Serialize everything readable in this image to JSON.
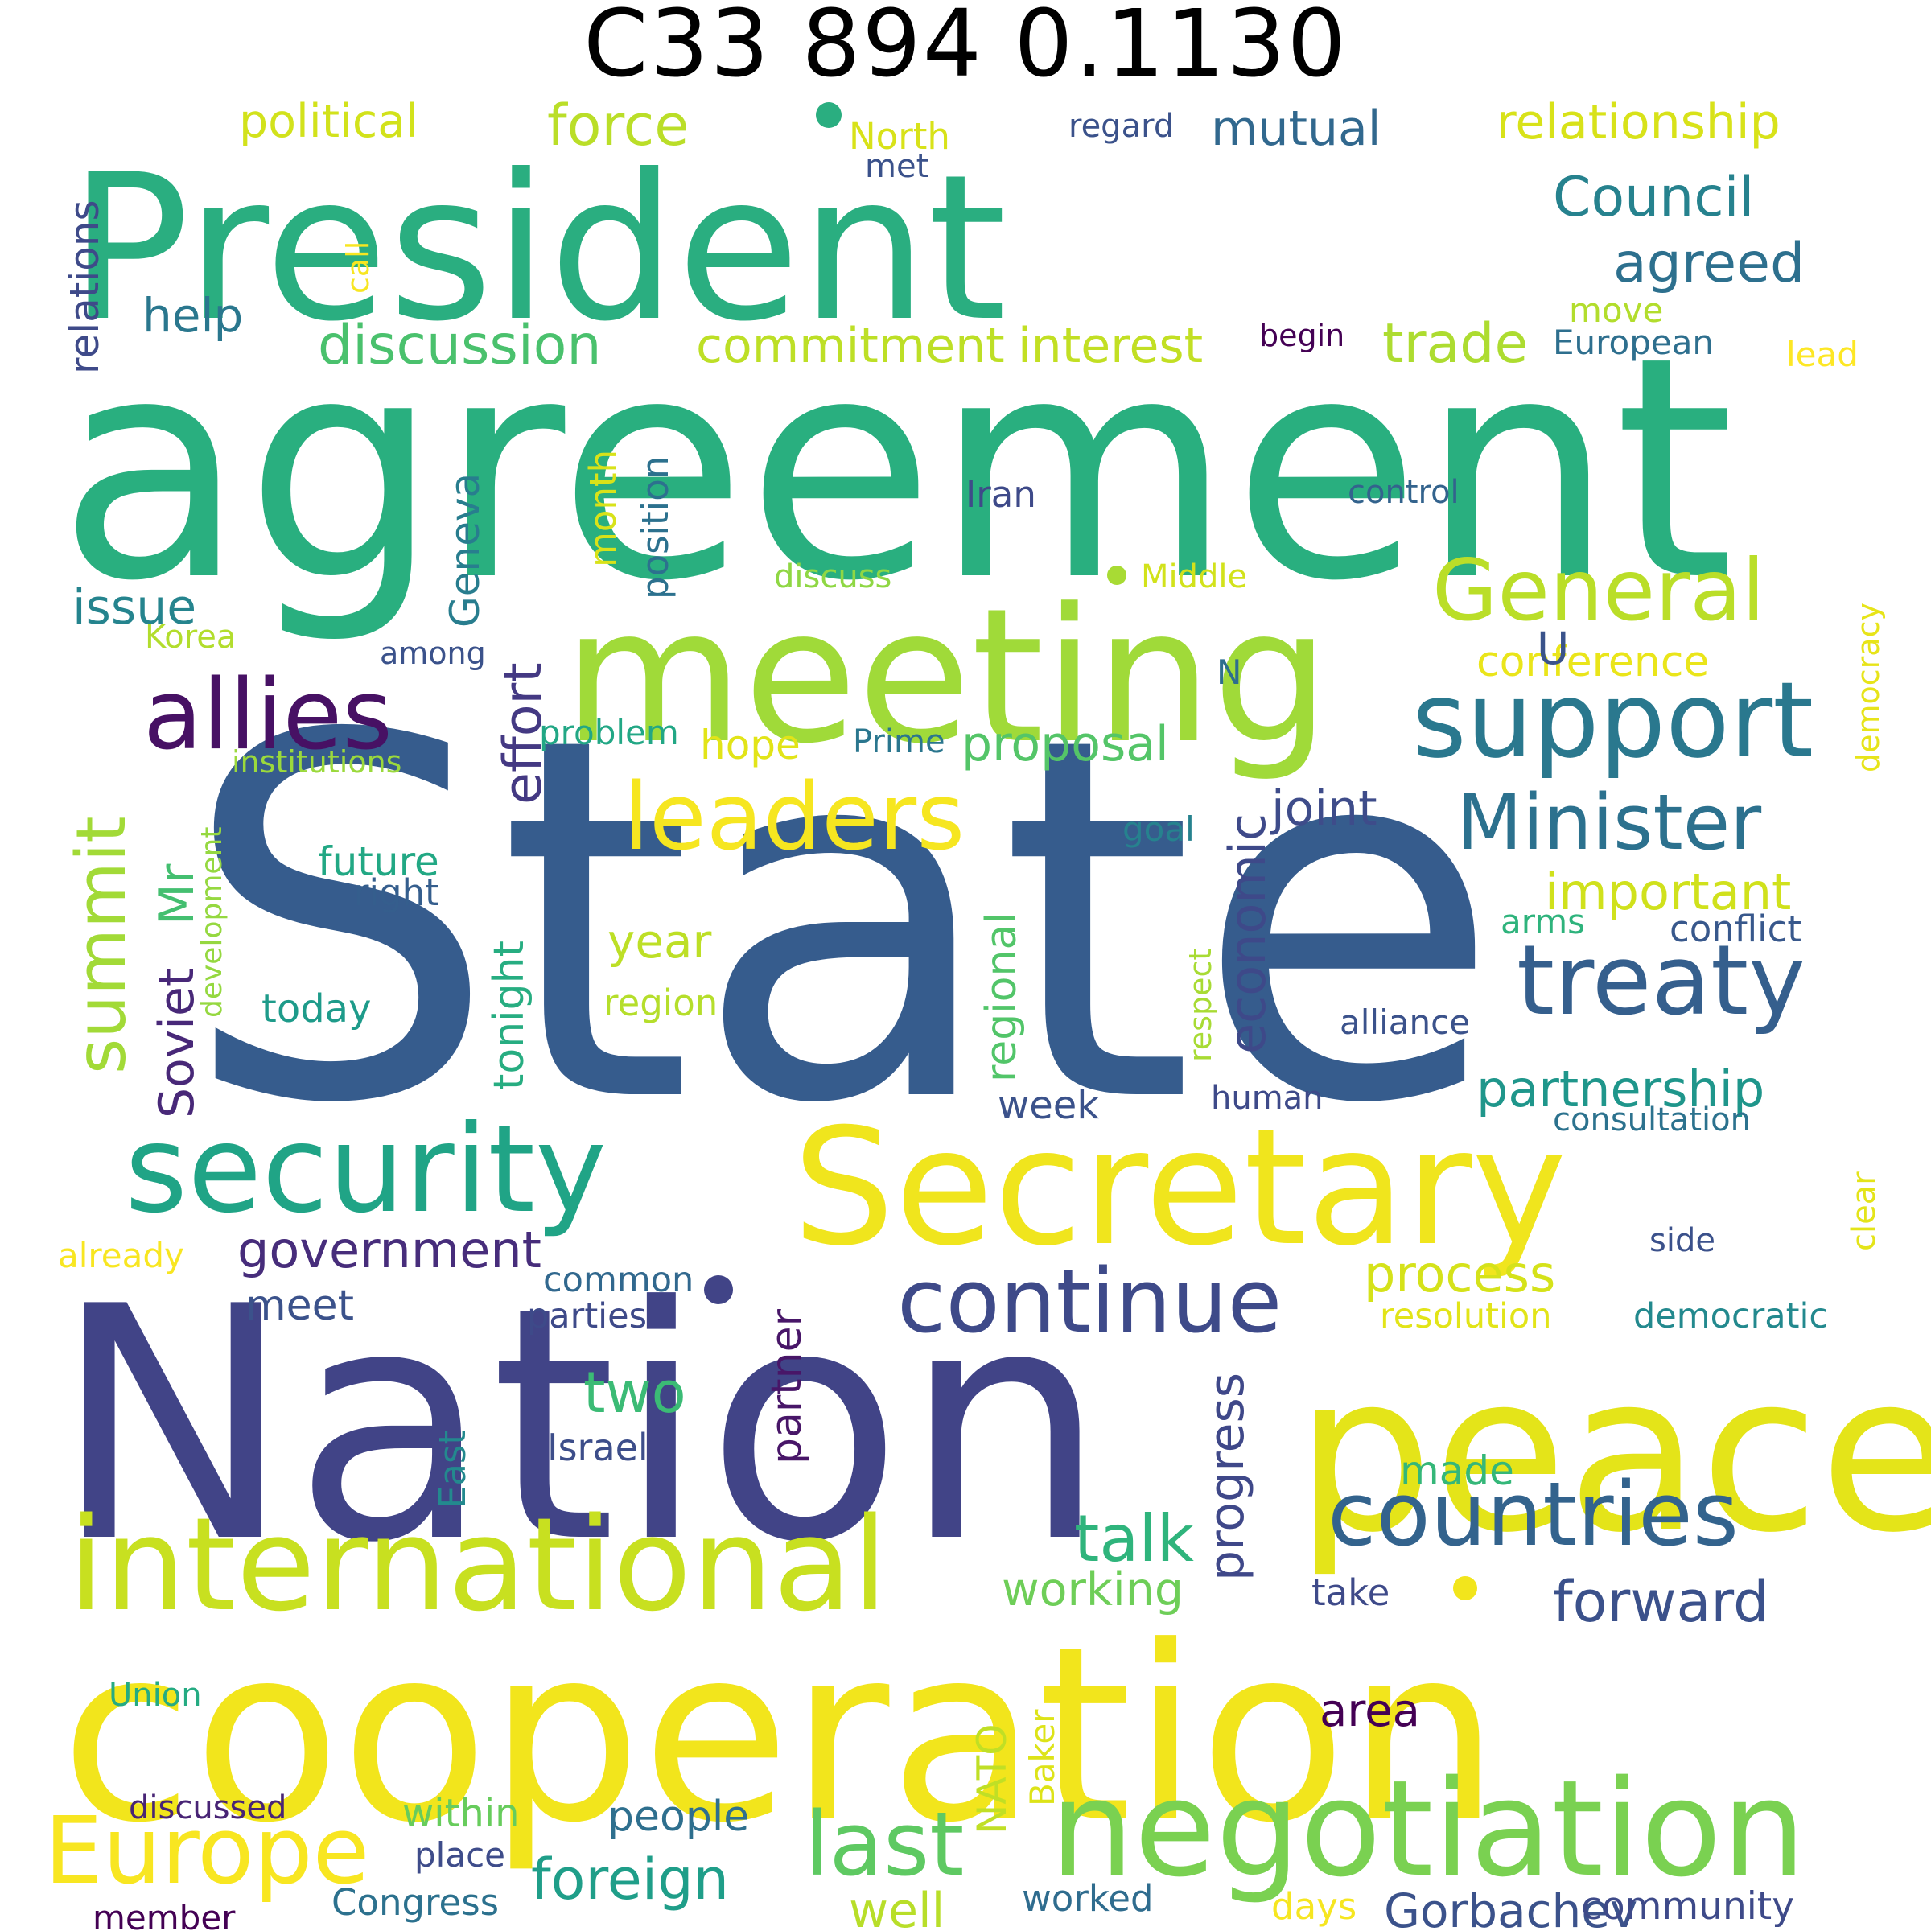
{
  "title": "C33 894 0.1130",
  "words": [
    {
      "text": "State",
      "color": "#365c8d"
    },
    {
      "text": "agreement",
      "color": "#29af7f"
    },
    {
      "text": "President",
      "color": "#2aae80"
    },
    {
      "text": "Nation",
      "color": "#414487"
    },
    {
      "text": "cooperation",
      "color": "#f2e51c"
    },
    {
      "text": "meeting",
      "color": "#a0da39"
    },
    {
      "text": "Secretary",
      "color": "#f0e51d"
    },
    {
      "text": "peace",
      "color": "#e4e419"
    },
    {
      "text": "international",
      "color": "#c8e020"
    },
    {
      "text": "negotiation",
      "color": "#7ad151"
    },
    {
      "text": "security",
      "color": "#20a486"
    },
    {
      "text": "support",
      "color": "#2a788e"
    },
    {
      "text": "countries",
      "color": "#33638d"
    },
    {
      "text": "allies",
      "color": "#471164"
    },
    {
      "text": "continue",
      "color": "#3e4a89"
    },
    {
      "text": "leaders",
      "color": "#f6e620"
    },
    {
      "text": "General",
      "color": "#bade28"
    },
    {
      "text": "Minister",
      "color": "#2c718e"
    },
    {
      "text": "treaty",
      "color": "#355f8d"
    },
    {
      "text": "Europe",
      "color": "#f8e621"
    },
    {
      "text": "summit",
      "color": "#a2da37"
    },
    {
      "text": "last",
      "color": "#5ec962"
    },
    {
      "text": "discussion",
      "color": "#4ac16d"
    },
    {
      "text": "government",
      "color": "#472d7b"
    },
    {
      "text": "foreign",
      "color": "#1f9e89"
    },
    {
      "text": "forward",
      "color": "#3b518b"
    },
    {
      "text": "partnership",
      "color": "#1f968b"
    },
    {
      "text": "important",
      "color": "#d0e11c"
    },
    {
      "text": "relationship",
      "color": "#d8e219"
    },
    {
      "text": "Council",
      "color": "#26828e"
    },
    {
      "text": "agreed",
      "color": "#2d708e"
    },
    {
      "text": "commitment",
      "color": "#bddf26"
    },
    {
      "text": "interest",
      "color": "#c2df23"
    },
    {
      "text": "trade",
      "color": "#addc30"
    },
    {
      "text": "force",
      "color": "#bade28"
    },
    {
      "text": "mutual",
      "color": "#31688e"
    },
    {
      "text": "political",
      "color": "#d2e21b"
    },
    {
      "text": "effort",
      "color": "#443983"
    },
    {
      "text": "economic",
      "color": "#3e4989"
    },
    {
      "text": "Soviet",
      "color": "#482878"
    },
    {
      "text": "Mr",
      "color": "#44bf70"
    },
    {
      "text": "issue",
      "color": "#25848e"
    },
    {
      "text": "process",
      "color": "#d5e21a"
    },
    {
      "text": "proposal",
      "color": "#54c568"
    },
    {
      "text": "talk",
      "color": "#2fb47c"
    },
    {
      "text": "two",
      "color": "#3bbb75"
    },
    {
      "text": "working",
      "color": "#6ece58"
    },
    {
      "text": "progress",
      "color": "#3f4889"
    },
    {
      "text": "regional",
      "color": "#52c569"
    },
    {
      "text": "tonight",
      "color": "#27ad81"
    },
    {
      "text": "partner",
      "color": "#481668"
    },
    {
      "text": "relations",
      "color": "#3e4a89"
    },
    {
      "text": "help",
      "color": "#2a778e"
    },
    {
      "text": "year",
      "color": "#bddf26"
    },
    {
      "text": "future",
      "color": "#22a884"
    },
    {
      "text": "joint",
      "color": "#3e4c8a"
    },
    {
      "text": "hope",
      "color": "#e2e418"
    },
    {
      "text": "conference",
      "color": "#eae51a"
    },
    {
      "text": "Geneva",
      "color": "#287d8e"
    },
    {
      "text": "month",
      "color": "#d8e219"
    },
    {
      "text": "position",
      "color": "#2c718e"
    },
    {
      "text": "area",
      "color": "#440154"
    },
    {
      "text": "made",
      "color": "#35b779"
    },
    {
      "text": "people",
      "color": "#2e6f8e"
    },
    {
      "text": "well",
      "color": "#b8de29"
    },
    {
      "text": "Gorbachev",
      "color": "#3b528b"
    },
    {
      "text": "community",
      "color": "#3e4a89"
    },
    {
      "text": "meet",
      "color": "#3b528b"
    },
    {
      "text": "U",
      "color": "#3a538b"
    },
    {
      "text": "conflict",
      "color": "#38588c"
    },
    {
      "text": "arms",
      "color": "#2eb37c"
    },
    {
      "text": "today",
      "color": "#1e9b8a"
    },
    {
      "text": "right",
      "color": "#355e8d"
    },
    {
      "text": "region",
      "color": "#b5de2b"
    },
    {
      "text": "Israel",
      "color": "#3d4e8a"
    },
    {
      "text": "East",
      "color": "#23898e"
    },
    {
      "text": "common",
      "color": "#31688e"
    },
    {
      "text": "parties",
      "color": "#3e4a89"
    },
    {
      "text": "resolution",
      "color": "#e2e418"
    },
    {
      "text": "democratic",
      "color": "#23898e"
    },
    {
      "text": "take",
      "color": "#3e4a89"
    },
    {
      "text": "NATO",
      "color": "#c0df25"
    },
    {
      "text": "Baker",
      "color": "#dde318"
    },
    {
      "text": "within",
      "color": "#67cc5c"
    },
    {
      "text": "place",
      "color": "#3e4c8a"
    },
    {
      "text": "Congress",
      "color": "#2c718e"
    },
    {
      "text": "worked",
      "color": "#2f6c8e"
    },
    {
      "text": "days",
      "color": "#f6e620"
    },
    {
      "text": "member",
      "color": "#440154"
    },
    {
      "text": "discussed",
      "color": "#482475"
    },
    {
      "text": "already",
      "color": "#f8e621"
    },
    {
      "text": "Union",
      "color": "#25ab82"
    },
    {
      "text": "side",
      "color": "#3b518b"
    },
    {
      "text": "clear",
      "color": "#e4e419"
    },
    {
      "text": "consultation",
      "color": "#2c728e"
    },
    {
      "text": "human",
      "color": "#3e4a89"
    },
    {
      "text": "week",
      "color": "#3b528b"
    },
    {
      "text": "alliance",
      "color": "#3b528b"
    },
    {
      "text": "respect",
      "color": "#a8db34"
    },
    {
      "text": "development",
      "color": "#95d840"
    },
    {
      "text": "goal",
      "color": "#26828e"
    },
    {
      "text": "institutions",
      "color": "#9bd93c"
    },
    {
      "text": "problem",
      "color": "#22a785"
    },
    {
      "text": "Prime",
      "color": "#2a768e"
    },
    {
      "text": "N",
      "color": "#2e6e8e"
    },
    {
      "text": "among",
      "color": "#3b528b"
    },
    {
      "text": "Korea",
      "color": "#b2dd2d"
    },
    {
      "text": "discuss",
      "color": "#8fd744"
    },
    {
      "text": "Middle",
      "color": "#d2e21b"
    },
    {
      "text": "democracy",
      "color": "#e7e419"
    },
    {
      "text": "Iran",
      "color": "#3e4a89"
    },
    {
      "text": "control",
      "color": "#33638d"
    },
    {
      "text": "lead",
      "color": "#fde725"
    },
    {
      "text": "European",
      "color": "#2e6f8e"
    },
    {
      "text": "move",
      "color": "#b2dd2d"
    },
    {
      "text": "begin",
      "color": "#440154"
    },
    {
      "text": "call",
      "color": "#f8e621"
    },
    {
      "text": "regard",
      "color": "#3b528b"
    },
    {
      "text": "met",
      "color": "#3b528b"
    },
    {
      "text": "North",
      "color": "#d8e219"
    },
    {
      "text": "dot",
      "color": "#a8db34"
    }
  ]
}
